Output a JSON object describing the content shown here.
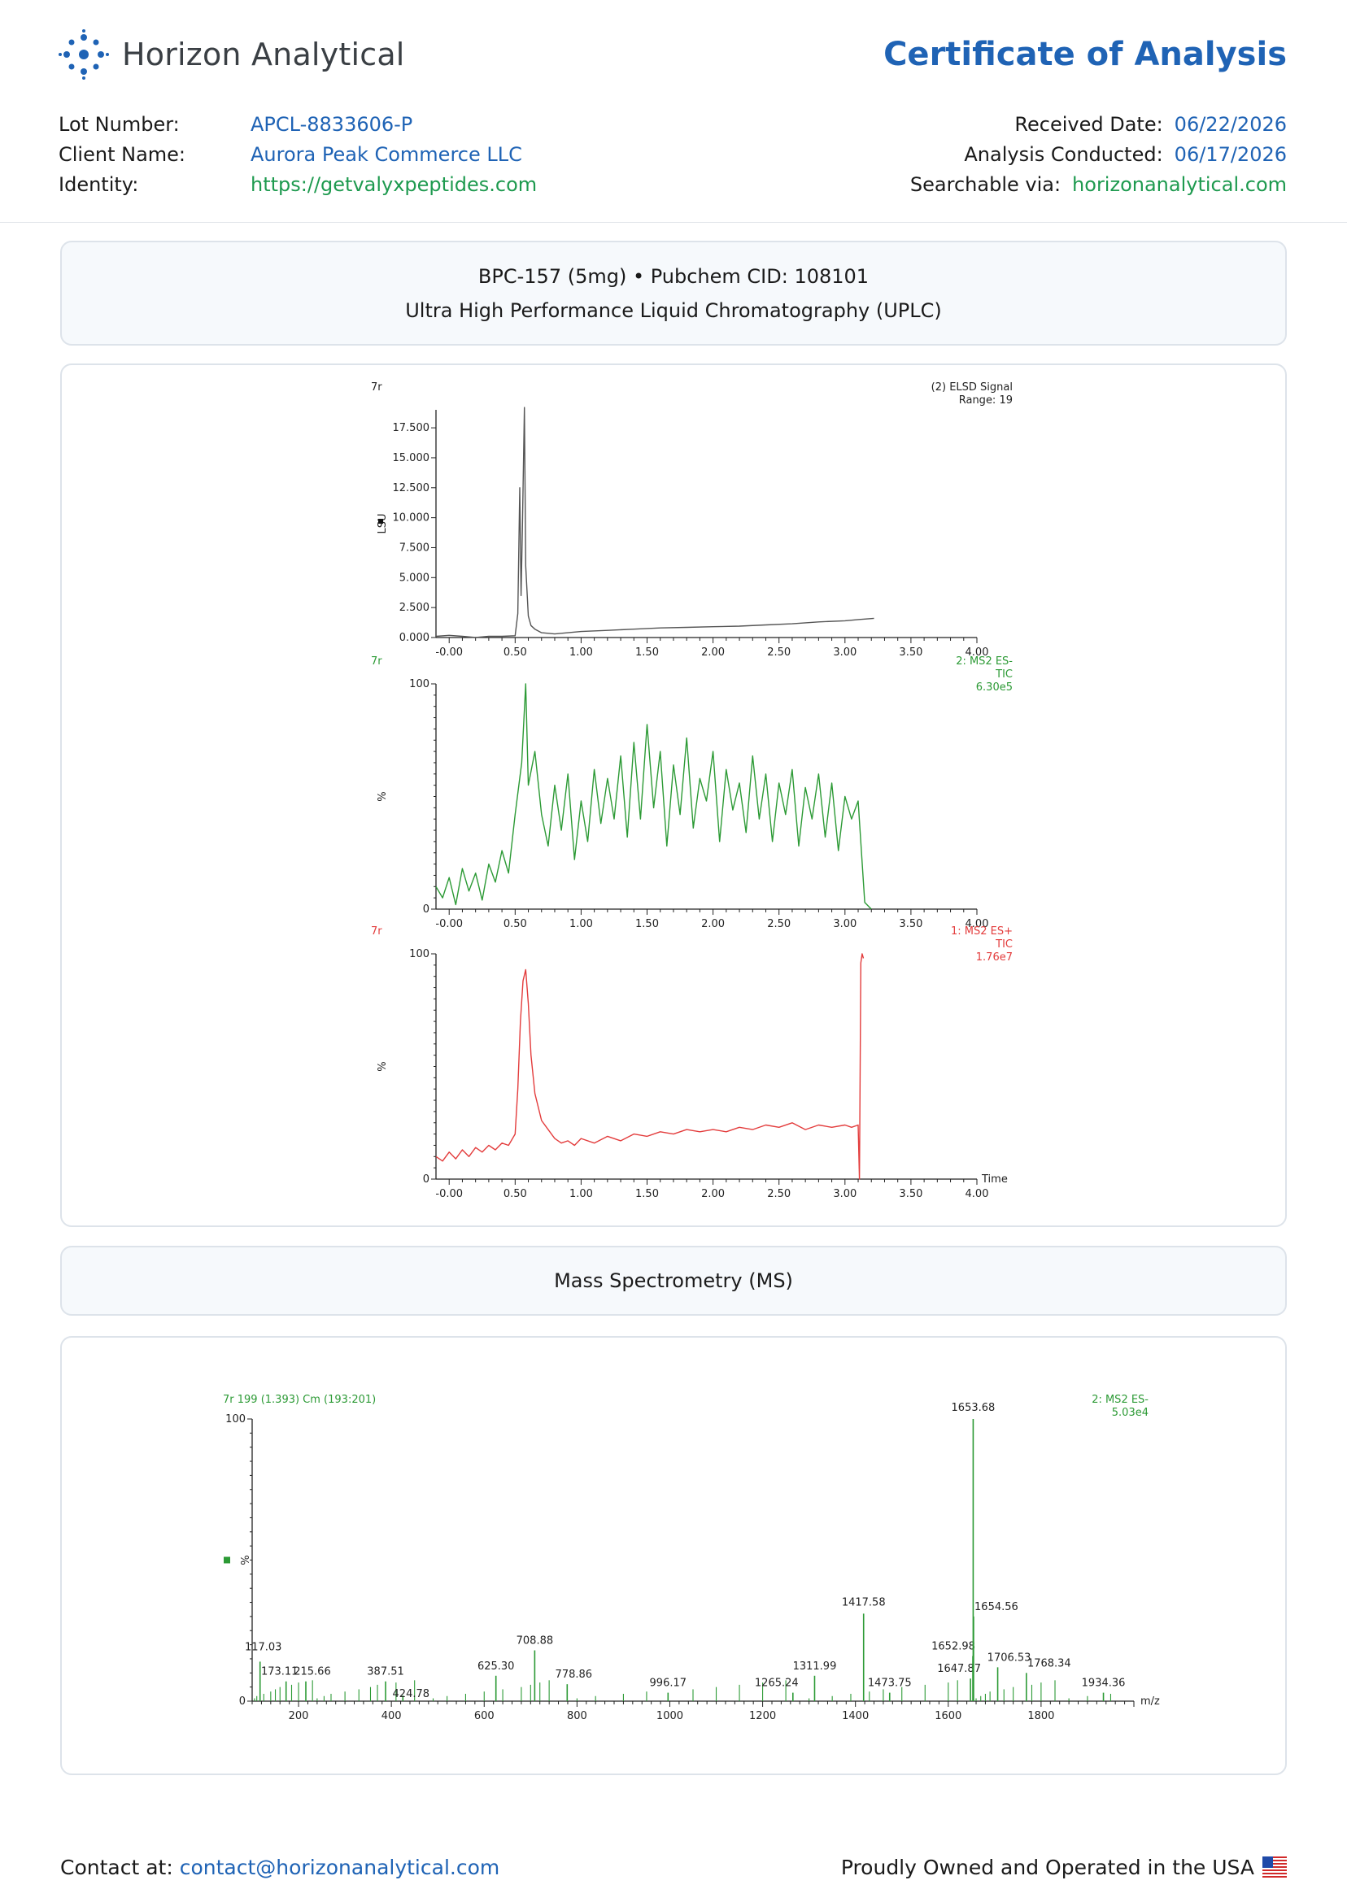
{
  "header": {
    "brand_name": "Horizon Analytical",
    "brand_icon": "molecule-dots-logo",
    "document_title": "Certificate of Analysis",
    "accent_color": "#1f63b5",
    "link_color": "#1e9a4f"
  },
  "meta_left": [
    {
      "label": "Lot Number:",
      "value": "APCL-8833606-P"
    },
    {
      "label": "Client Name:",
      "value": "Aurora Peak Commerce LLC"
    },
    {
      "label": "Identity:",
      "value": "https://getvalyxpeptides.com"
    }
  ],
  "meta_right": [
    {
      "label": "Received Date:",
      "value": "06/22/2026"
    },
    {
      "label": "Analysis Conducted:",
      "value": "06/17/2026"
    },
    {
      "label": "Searchable via:",
      "value": "horizonanalytical.com"
    }
  ],
  "sections": {
    "compound_line": "BPC-157 (5mg) • Pubchem CID: 108101",
    "uplc_title": "Ultra High Performance Liquid Chromatography (UPLC)",
    "ms_title": "Mass Spectrometry (MS)"
  },
  "footer": {
    "contact_label": "Contact at:",
    "contact_email": "contact@horizonanalytical.com",
    "tagline": "Proudly Owned and Operated in the USA",
    "flag_icon": "us-flag-icon"
  },
  "chart_data": [
    {
      "type": "line",
      "id": "elsd",
      "color": "#555555",
      "sample_label": "7r",
      "trace_label_lines": [
        "(2) ELSD Signal",
        "Range: 19"
      ],
      "ylabel": "LSU",
      "xlim": [
        -0.1,
        4.0
      ],
      "ylim": [
        0,
        19000
      ],
      "yticks": [
        0,
        2500,
        5000,
        7500,
        10000,
        12500,
        15000,
        17500
      ],
      "ytick_labels": [
        "0.000",
        "2.500",
        "5.000",
        "7.500",
        "10.000",
        "12.500",
        "15.000",
        "17.500"
      ],
      "xticks": [
        0,
        0.5,
        1.0,
        1.5,
        2.0,
        2.5,
        3.0,
        3.5,
        4.0
      ],
      "xtick_labels": [
        "-0.00",
        "0.50",
        "1.00",
        "1.50",
        "2.00",
        "2.50",
        "3.00",
        "3.50",
        "4.00"
      ],
      "x": [
        -0.1,
        0.0,
        0.1,
        0.2,
        0.3,
        0.4,
        0.5,
        0.52,
        0.535,
        0.545,
        0.555,
        0.57,
        0.58,
        0.6,
        0.62,
        0.65,
        0.7,
        0.8,
        0.9,
        1.0,
        1.2,
        1.4,
        1.6,
        1.8,
        2.0,
        2.2,
        2.4,
        2.6,
        2.8,
        3.0,
        3.1,
        3.22
      ],
      "y": [
        100,
        180,
        100,
        0,
        100,
        100,
        150,
        2000,
        12500,
        3500,
        9000,
        19200,
        6000,
        1800,
        1000,
        700,
        400,
        300,
        400,
        500,
        600,
        700,
        800,
        850,
        900,
        950,
        1050,
        1150,
        1300,
        1400,
        1500,
        1600
      ]
    },
    {
      "type": "line",
      "id": "ms-es-minus",
      "color": "#2c9a35",
      "sample_label": "7r",
      "trace_label_lines": [
        "2: MS2 ES-",
        "TIC",
        "6.30e5"
      ],
      "ylabel": "%",
      "xlim": [
        -0.1,
        4.0
      ],
      "ylim": [
        0,
        100
      ],
      "yticks": [
        0,
        100
      ],
      "ytick_labels": [
        "0",
        "100"
      ],
      "xticks": [
        0,
        0.5,
        1.0,
        1.5,
        2.0,
        2.5,
        3.0,
        3.5,
        4.0
      ],
      "xtick_labels": [
        "-0.00",
        "0.50",
        "1.00",
        "1.50",
        "2.00",
        "2.50",
        "3.00",
        "3.50",
        "4.00"
      ],
      "x": [
        -0.1,
        -0.05,
        0.0,
        0.05,
        0.1,
        0.15,
        0.2,
        0.25,
        0.3,
        0.35,
        0.4,
        0.45,
        0.5,
        0.55,
        0.58,
        0.6,
        0.65,
        0.7,
        0.75,
        0.8,
        0.85,
        0.9,
        0.95,
        1.0,
        1.05,
        1.1,
        1.15,
        1.2,
        1.25,
        1.3,
        1.35,
        1.4,
        1.45,
        1.5,
        1.55,
        1.6,
        1.65,
        1.7,
        1.75,
        1.8,
        1.85,
        1.9,
        1.95,
        2.0,
        2.05,
        2.1,
        2.15,
        2.2,
        2.25,
        2.3,
        2.35,
        2.4,
        2.45,
        2.5,
        2.55,
        2.6,
        2.65,
        2.7,
        2.75,
        2.8,
        2.85,
        2.9,
        2.95,
        3.0,
        3.05,
        3.1,
        3.15,
        3.2
      ],
      "y": [
        10,
        5,
        14,
        2,
        18,
        8,
        16,
        4,
        20,
        12,
        26,
        16,
        42,
        65,
        100,
        55,
        70,
        42,
        28,
        55,
        35,
        60,
        22,
        48,
        30,
        62,
        38,
        58,
        40,
        68,
        32,
        74,
        40,
        82,
        45,
        70,
        28,
        64,
        42,
        76,
        36,
        58,
        48,
        70,
        30,
        62,
        44,
        56,
        34,
        68,
        40,
        60,
        30,
        56,
        42,
        62,
        28,
        54,
        40,
        60,
        32,
        56,
        26,
        50,
        40,
        48,
        3,
        0
      ]
    },
    {
      "type": "line",
      "id": "ms-es-plus",
      "color": "#e33c3c",
      "sample_label": "7r",
      "trace_label_lines": [
        "1: MS2 ES+",
        "TIC",
        "1.76e7"
      ],
      "ylabel": "%",
      "xaxis_label": "Time",
      "xlim": [
        -0.1,
        4.0
      ],
      "ylim": [
        0,
        100
      ],
      "yticks": [
        0,
        100
      ],
      "ytick_labels": [
        "0",
        "100"
      ],
      "xticks": [
        0,
        0.5,
        1.0,
        1.5,
        2.0,
        2.5,
        3.0,
        3.5,
        4.0
      ],
      "xtick_labels": [
        "-0.00",
        "0.50",
        "1.00",
        "1.50",
        "2.00",
        "2.50",
        "3.00",
        "3.50",
        "4.00"
      ],
      "x": [
        -0.1,
        -0.05,
        0.0,
        0.05,
        0.1,
        0.15,
        0.2,
        0.25,
        0.3,
        0.35,
        0.4,
        0.45,
        0.5,
        0.52,
        0.54,
        0.56,
        0.58,
        0.6,
        0.62,
        0.65,
        0.7,
        0.75,
        0.8,
        0.85,
        0.9,
        0.95,
        1.0,
        1.1,
        1.2,
        1.3,
        1.4,
        1.5,
        1.6,
        1.7,
        1.8,
        1.9,
        2.0,
        2.1,
        2.2,
        2.3,
        2.4,
        2.5,
        2.6,
        2.7,
        2.8,
        2.9,
        3.0,
        3.05,
        3.1,
        3.11,
        3.12,
        3.13,
        3.14
      ],
      "y": [
        10,
        8,
        12,
        9,
        13,
        10,
        14,
        12,
        15,
        13,
        16,
        15,
        20,
        40,
        70,
        88,
        93,
        78,
        55,
        38,
        26,
        22,
        18,
        16,
        17,
        15,
        18,
        16,
        19,
        17,
        20,
        19,
        21,
        20,
        22,
        21,
        22,
        21,
        23,
        22,
        24,
        23,
        25,
        22,
        24,
        23,
        24,
        23,
        24,
        0,
        96,
        100,
        98
      ]
    },
    {
      "type": "bar",
      "id": "mass-spectrum",
      "color": "#2c9a35",
      "scan_label": "7r 199 (1.393) Cm (193:201)",
      "trace_label_lines": [
        "2: MS2 ES-",
        "5.03e4"
      ],
      "ylabel": "%",
      "xaxis_label": "m/z",
      "xlim": [
        100,
        2000
      ],
      "ylim": [
        0,
        100
      ],
      "yticks": [
        0,
        100
      ],
      "ytick_labels": [
        "0",
        "100"
      ],
      "xticks": [
        200,
        400,
        600,
        800,
        1000,
        1200,
        1400,
        1600,
        1800
      ],
      "xtick_labels": [
        "200",
        "400",
        "600",
        "800",
        "1000",
        "1200",
        "1400",
        "1600",
        "1800"
      ],
      "peaks": [
        {
          "mz": 117.03,
          "intensity": 14,
          "label": "117.03"
        },
        {
          "mz": 173.11,
          "intensity": 7,
          "label": "173.11"
        },
        {
          "mz": 215.66,
          "intensity": 7,
          "label": "215.66"
        },
        {
          "mz": 387.51,
          "intensity": 7,
          "label": "387.51"
        },
        {
          "mz": 424.78,
          "intensity": 2,
          "label": "424.78"
        },
        {
          "mz": 625.3,
          "intensity": 9,
          "label": "625.30"
        },
        {
          "mz": 708.88,
          "intensity": 18,
          "label": "708.88"
        },
        {
          "mz": 778.86,
          "intensity": 6,
          "label": "778.86"
        },
        {
          "mz": 996.17,
          "intensity": 3,
          "label": "996.17"
        },
        {
          "mz": 1265.24,
          "intensity": 3,
          "label": "1265.24"
        },
        {
          "mz": 1311.99,
          "intensity": 9,
          "label": "1311.99"
        },
        {
          "mz": 1417.58,
          "intensity": 31,
          "label": "1417.58"
        },
        {
          "mz": 1473.75,
          "intensity": 3,
          "label": "1473.75"
        },
        {
          "mz": 1647.87,
          "intensity": 8,
          "label": "1647.87"
        },
        {
          "mz": 1652.98,
          "intensity": 16,
          "label": "1652.98"
        },
        {
          "mz": 1653.68,
          "intensity": 100,
          "label": "1653.68"
        },
        {
          "mz": 1654.56,
          "intensity": 30,
          "label": "1654.56"
        },
        {
          "mz": 1706.53,
          "intensity": 12,
          "label": "1706.53"
        },
        {
          "mz": 1768.34,
          "intensity": 10,
          "label": "1768.34"
        },
        {
          "mz": 1934.36,
          "intensity": 3,
          "label": "1934.36"
        }
      ]
    }
  ]
}
